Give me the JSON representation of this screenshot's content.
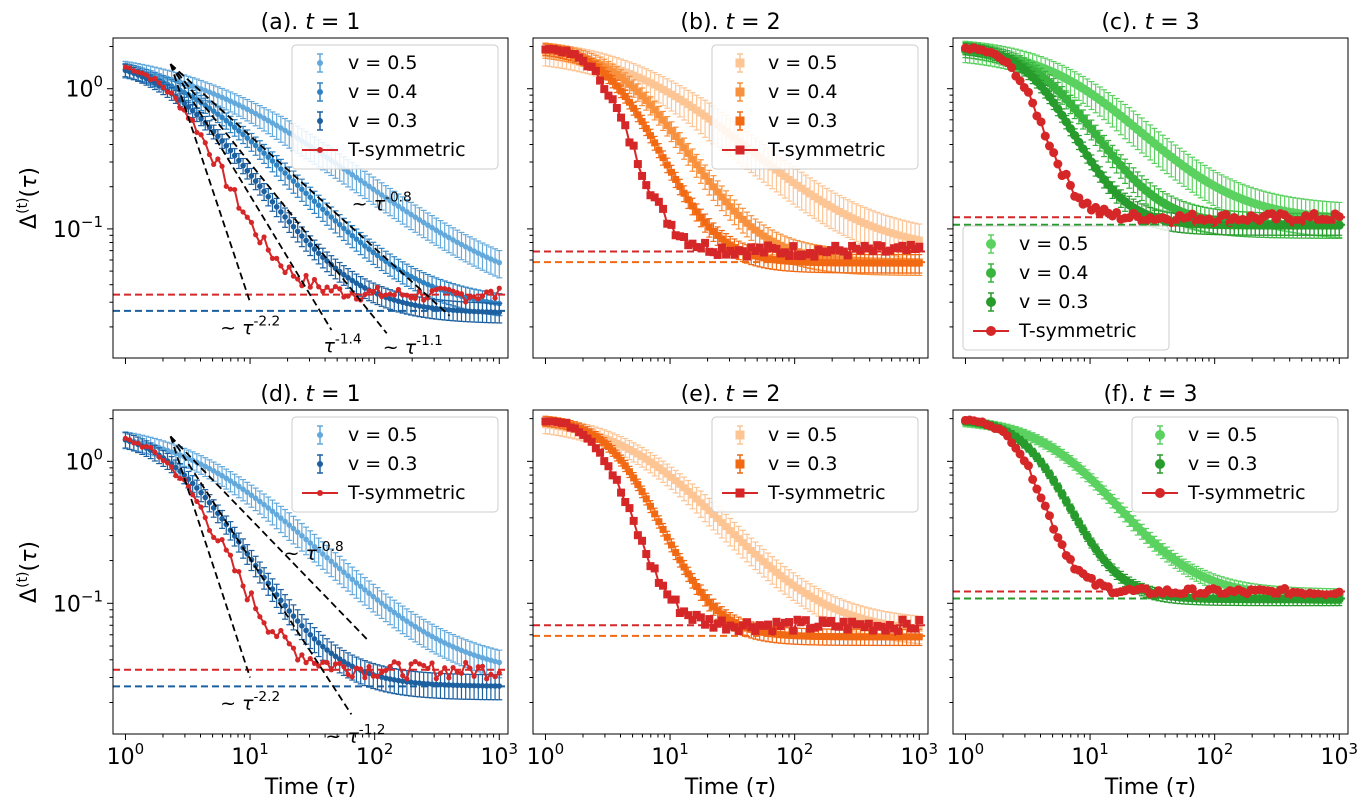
{
  "chart_data": {
    "type": "line",
    "x_scale": "log",
    "y_scale": "log",
    "xlabel": "Time (τ)",
    "ylabel": "Δ(t)(τ)",
    "xlim": [
      1,
      1000
    ],
    "ylim": [
      0.012,
      2.3
    ],
    "x_ticks": [
      "10^0",
      "10^1",
      "10^2",
      "10^3"
    ],
    "y_ticks": [
      "10^0",
      "10^-1"
    ],
    "colors": {
      "blue_light": "#63a9dc",
      "blue_mid": "#3083c2",
      "blue_dark": "#1c60a0",
      "orange_light": "#fdc494",
      "orange_mid": "#f8913e",
      "orange_dark": "#f16913",
      "green_light": "#5bd160",
      "green_mid": "#39b43e",
      "green_dark": "#279b2c",
      "red": "#d62728",
      "fit": "#000000"
    },
    "panels": [
      {
        "title": "(a). t = 1",
        "title_prefix": "(a).",
        "t": "1",
        "marker": "dot",
        "legend_loc": "upper right",
        "series": [
          {
            "name": "v = 0.5",
            "color": "blue_light",
            "kind": "decay",
            "y0": 1.7,
            "yinf": 0.03,
            "tau": 6.0,
            "p": 0.8,
            "err": 0.22
          },
          {
            "name": "v = 0.4",
            "color": "blue_mid",
            "kind": "decay",
            "y0": 1.7,
            "yinf": 0.026,
            "tau": 3.5,
            "p": 1.1,
            "err": 0.18
          },
          {
            "name": "v = 0.3",
            "color": "blue_dark",
            "kind": "decay",
            "y0": 1.7,
            "yinf": 0.025,
            "tau": 2.6,
            "p": 1.4,
            "err": 0.16
          },
          {
            "name": "T-symmetric",
            "color": "red",
            "kind": "decay",
            "y0": 1.6,
            "yinf": 0.034,
            "tau": 2.6,
            "p": 2.2,
            "err": 0,
            "noise": 0.12
          }
        ],
        "hlines": [
          {
            "y": 0.034,
            "color": "red"
          },
          {
            "y": 0.026,
            "color": "blue_dark"
          }
        ],
        "fits": [
          {
            "label": "~ τ^-0.8",
            "x1": 2.3,
            "y1": 1.5,
            "x2": 400,
            "y2": 0.024
          },
          {
            "label": "~ τ^-2.2",
            "x1": 2.3,
            "y1": 1.5,
            "x2": 10,
            "y2": 0.03
          },
          {
            "label": "τ^-1.4",
            "x1": 2.3,
            "y1": 1.5,
            "x2": 45,
            "y2": 0.019
          },
          {
            "label": "~ τ^-1.1",
            "x1": 2.3,
            "y1": 1.5,
            "x2": 125,
            "y2": 0.018
          }
        ]
      },
      {
        "title": "(b). t = 2",
        "title_prefix": "(b).",
        "t": "2",
        "marker": "square",
        "legend_loc": "upper right",
        "series": [
          {
            "name": "v = 0.5",
            "color": "orange_light",
            "kind": "decay",
            "y0": 2.0,
            "yinf": 0.068,
            "tau": 8.0,
            "p": 1.0,
            "err": 0.3
          },
          {
            "name": "v = 0.4",
            "color": "orange_mid",
            "kind": "decay",
            "y0": 2.0,
            "yinf": 0.058,
            "tau": 5.0,
            "p": 1.7,
            "err": 0.2
          },
          {
            "name": "v = 0.3",
            "color": "orange_dark",
            "kind": "decay",
            "y0": 2.0,
            "yinf": 0.057,
            "tau": 3.8,
            "p": 2.2,
            "err": 0.15
          },
          {
            "name": "T-symmetric",
            "color": "red",
            "kind": "decay",
            "y0": 2.0,
            "yinf": 0.07,
            "tau": 3.0,
            "p": 3.2,
            "err": 0,
            "noise": 0.1
          }
        ],
        "hlines": [
          {
            "y": 0.069,
            "color": "red"
          },
          {
            "y": 0.058,
            "color": "orange_dark"
          }
        ],
        "fits": []
      },
      {
        "title": "(c). t = 3",
        "title_prefix": "(c).",
        "t": "3",
        "marker": "circle",
        "legend_loc": "lower left",
        "series": [
          {
            "name": "v = 0.5",
            "color": "green_light",
            "kind": "decay",
            "y0": 2.0,
            "yinf": 0.115,
            "tau": 8.0,
            "p": 1.2,
            "err": 0.28
          },
          {
            "name": "v = 0.4",
            "color": "green_mid",
            "kind": "decay",
            "y0": 2.0,
            "yinf": 0.107,
            "tau": 5.0,
            "p": 1.8,
            "err": 0.2
          },
          {
            "name": "v = 0.3",
            "color": "green_dark",
            "kind": "decay",
            "y0": 2.0,
            "yinf": 0.106,
            "tau": 4.0,
            "p": 2.3,
            "err": 0.15
          },
          {
            "name": "T-symmetric",
            "color": "red",
            "kind": "decay",
            "y0": 2.0,
            "yinf": 0.12,
            "tau": 2.9,
            "p": 3.5,
            "err": 0,
            "noise": 0.08
          }
        ],
        "hlines": [
          {
            "y": 0.121,
            "color": "red"
          },
          {
            "y": 0.107,
            "color": "green_dark"
          }
        ],
        "fits": []
      },
      {
        "title": "(d). t = 1",
        "title_prefix": "(d).",
        "t": "1",
        "marker": "dot",
        "legend_loc": "upper right",
        "series": [
          {
            "name": "v = 0.5",
            "color": "blue_light",
            "kind": "decay",
            "y0": 1.7,
            "yinf": 0.03,
            "tau": 5.0,
            "p": 1.0,
            "err": 0.22
          },
          {
            "name": "v = 0.3",
            "color": "blue_dark",
            "kind": "decay",
            "y0": 1.7,
            "yinf": 0.026,
            "tau": 2.7,
            "p": 1.6,
            "err": 0.2
          },
          {
            "name": "T-symmetric",
            "color": "red",
            "kind": "decay",
            "y0": 1.6,
            "yinf": 0.034,
            "tau": 2.6,
            "p": 2.2,
            "err": 0,
            "noise": 0.14
          }
        ],
        "hlines": [
          {
            "y": 0.034,
            "color": "red"
          },
          {
            "y": 0.026,
            "color": "blue_dark"
          }
        ],
        "fits": [
          {
            "label": "~ τ^-0.8",
            "x1": 2.3,
            "y1": 1.5,
            "x2": 90,
            "y2": 0.054
          },
          {
            "label": "~ τ^-2.2",
            "x1": 2.3,
            "y1": 1.5,
            "x2": 10,
            "y2": 0.03
          },
          {
            "label": "~ τ^-1.2",
            "x1": 2.3,
            "y1": 1.5,
            "x2": 65,
            "y2": 0.0165
          }
        ]
      },
      {
        "title": "(e). t = 2",
        "title_prefix": "(e).",
        "t": "2",
        "marker": "square",
        "legend_loc": "upper right",
        "series": [
          {
            "name": "v = 0.5",
            "color": "orange_light",
            "kind": "decay",
            "y0": 2.0,
            "yinf": 0.062,
            "tau": 6.5,
            "p": 1.2,
            "err": 0.22
          },
          {
            "name": "v = 0.3",
            "color": "orange_dark",
            "kind": "decay",
            "y0": 2.0,
            "yinf": 0.058,
            "tau": 4.0,
            "p": 2.3,
            "err": 0.13
          },
          {
            "name": "T-symmetric",
            "color": "red",
            "kind": "decay",
            "y0": 2.0,
            "yinf": 0.07,
            "tau": 3.0,
            "p": 3.2,
            "err": 0,
            "noise": 0.1
          }
        ],
        "hlines": [
          {
            "y": 0.07,
            "color": "red"
          },
          {
            "y": 0.059,
            "color": "orange_dark"
          }
        ],
        "fits": []
      },
      {
        "title": "(f). t = 3",
        "title_prefix": "(f).",
        "t": "3",
        "marker": "circle",
        "legend_loc": "upper right",
        "series": [
          {
            "name": "v = 0.5",
            "color": "green_light",
            "kind": "decay",
            "y0": 2.0,
            "yinf": 0.112,
            "tau": 6.5,
            "p": 1.5,
            "err": 0.12
          },
          {
            "name": "v = 0.3",
            "color": "green_dark",
            "kind": "decay",
            "y0": 2.0,
            "yinf": 0.107,
            "tau": 3.8,
            "p": 2.4,
            "err": 0.1
          },
          {
            "name": "T-symmetric",
            "color": "red",
            "kind": "decay",
            "y0": 2.0,
            "yinf": 0.12,
            "tau": 2.9,
            "p": 3.5,
            "err": 0,
            "noise": 0.06
          }
        ],
        "hlines": [
          {
            "y": 0.121,
            "color": "red"
          },
          {
            "y": 0.108,
            "color": "green_dark"
          }
        ],
        "fits": []
      }
    ]
  }
}
